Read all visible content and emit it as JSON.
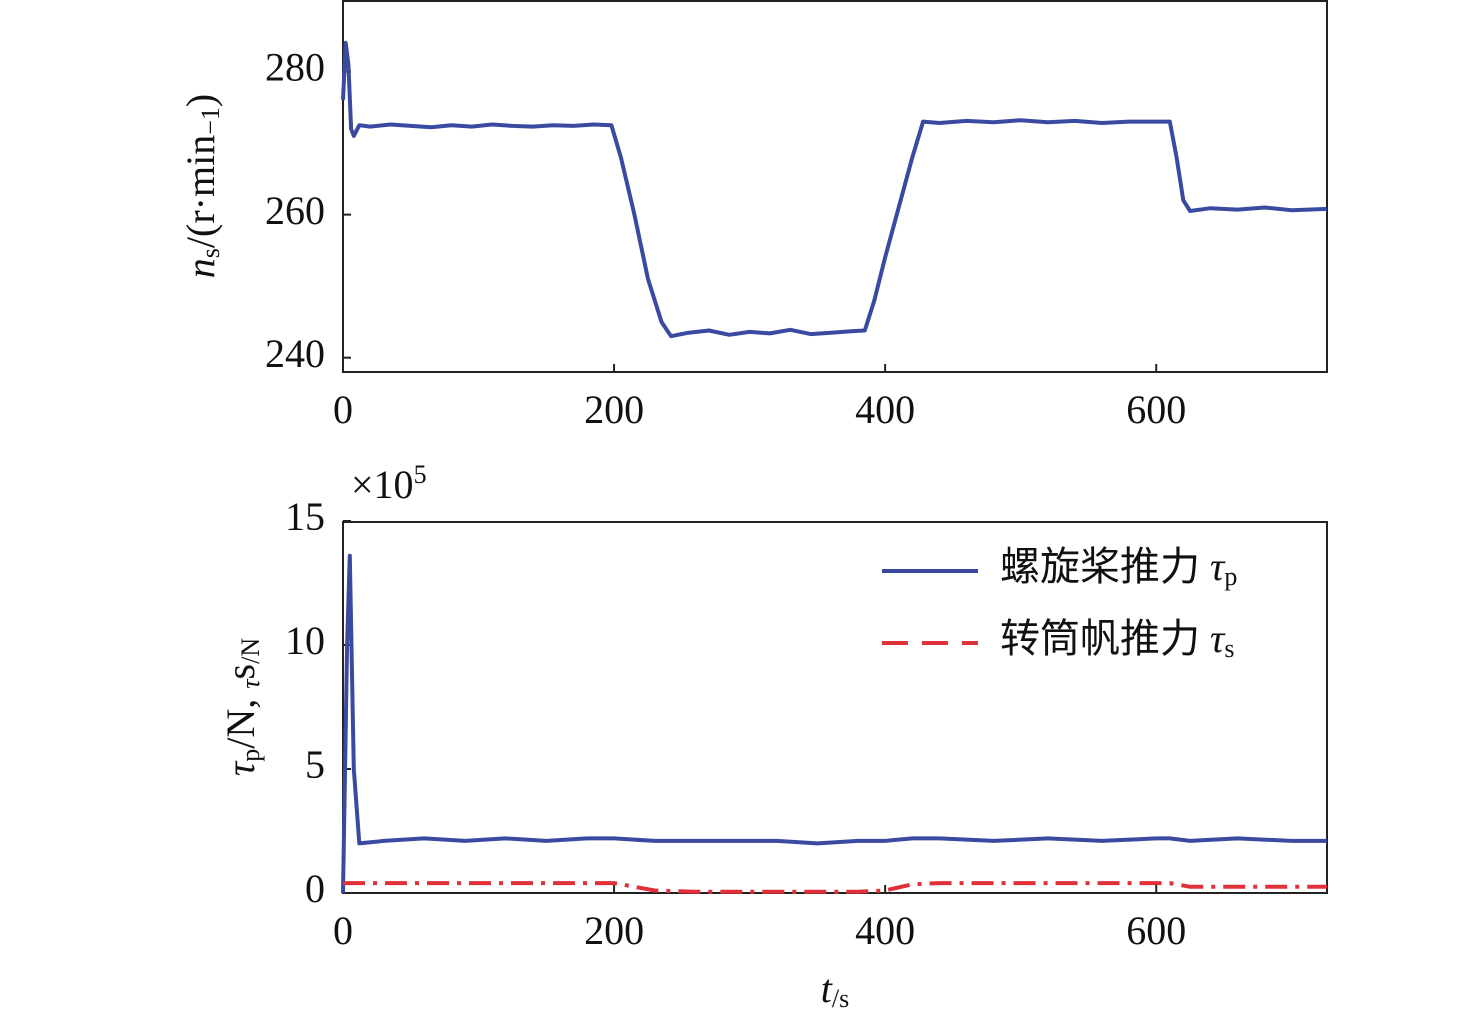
{
  "chart_data": [
    {
      "type": "line",
      "ylabel": [
        "n",
        "s",
        "/(r·min",
        "−1",
        ")"
      ],
      "x": [
        0,
        2,
        4,
        6,
        8,
        12,
        20,
        35,
        50,
        65,
        80,
        95,
        110,
        125,
        140,
        155,
        170,
        185,
        198,
        205,
        215,
        225,
        235,
        242,
        255,
        270,
        285,
        300,
        315,
        330,
        345,
        360,
        375,
        385,
        392,
        400,
        410,
        420,
        428,
        440,
        460,
        480,
        500,
        520,
        540,
        560,
        580,
        600,
        610,
        615,
        620,
        625,
        640,
        660,
        680,
        700,
        726
      ],
      "series": [
        {
          "color": "#3a4aa0",
          "style": "solid",
          "values": [
            276,
            284,
            281,
            272,
            271,
            272.5,
            272.3,
            272.6,
            272.4,
            272.2,
            272.5,
            272.3,
            272.6,
            272.4,
            272.3,
            272.5,
            272.4,
            272.6,
            272.5,
            268,
            260,
            251,
            245,
            243,
            243.5,
            243.8,
            243.2,
            243.6,
            243.4,
            243.9,
            243.3,
            243.5,
            243.7,
            243.8,
            248,
            254,
            261,
            268,
            273,
            272.8,
            273.1,
            272.9,
            273.2,
            272.9,
            273.1,
            272.8,
            273,
            273,
            273,
            268,
            262,
            260.5,
            260.9,
            260.7,
            261,
            260.6,
            260.8
          ]
        }
      ],
      "xlim": [
        0,
        726
      ],
      "xticks": [
        0,
        200,
        400,
        600
      ],
      "ylim": [
        238,
        290
      ],
      "yticks": [
        240,
        260,
        280
      ]
    },
    {
      "type": "line",
      "ylabel": [
        "τ",
        "p",
        "/N, ",
        "τ",
        "s",
        "/N"
      ],
      "xlabel": [
        "t",
        "/s"
      ],
      "offset_text": [
        "×10",
        "5"
      ],
      "x": [
        0,
        3,
        5,
        8,
        12,
        30,
        60,
        90,
        120,
        150,
        180,
        200,
        230,
        260,
        290,
        320,
        350,
        380,
        400,
        420,
        440,
        480,
        520,
        560,
        600,
        610,
        625,
        660,
        700,
        726
      ],
      "series": [
        {
          "name": "螺旋桨推力 τp",
          "color": "#3a4aa0",
          "style": "solid",
          "values": [
            0,
            10,
            13.6,
            5,
            2,
            2.1,
            2.2,
            2.1,
            2.2,
            2.1,
            2.2,
            2.2,
            2.1,
            2.1,
            2.1,
            2.1,
            2.0,
            2.1,
            2.1,
            2.2,
            2.2,
            2.1,
            2.2,
            2.1,
            2.2,
            2.2,
            2.1,
            2.2,
            2.1,
            2.1
          ]
        },
        {
          "name": "转筒帆推力 τs",
          "color": "#e0303a",
          "style": "dashdot",
          "values": [
            0.4,
            0.4,
            0.4,
            0.4,
            0.4,
            0.4,
            0.4,
            0.4,
            0.4,
            0.4,
            0.4,
            0.4,
            0.1,
            0.05,
            0.05,
            0.05,
            0.05,
            0.05,
            0.1,
            0.35,
            0.4,
            0.4,
            0.4,
            0.4,
            0.4,
            0.4,
            0.25,
            0.25,
            0.25,
            0.25
          ]
        }
      ],
      "xlim": [
        0,
        726
      ],
      "xticks": [
        0,
        200,
        400,
        600
      ],
      "ylim": [
        0,
        15
      ],
      "yticks": [
        0,
        5,
        10,
        15
      ],
      "legend": "upper right"
    }
  ]
}
